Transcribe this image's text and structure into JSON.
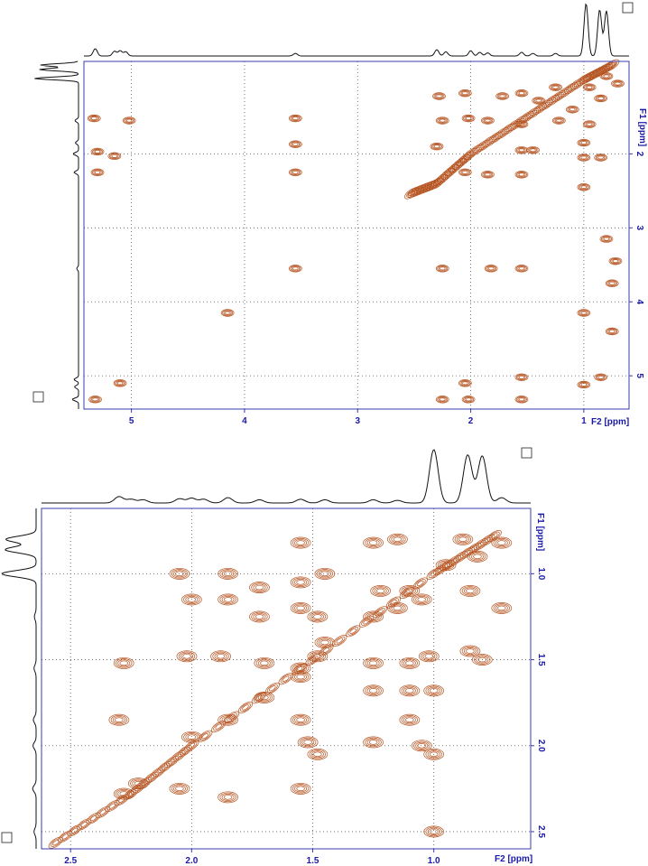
{
  "chart_data": [
    {
      "type": "heatmap",
      "panel": "top",
      "x_ticks": [
        "5",
        "4",
        "3",
        "2",
        "1"
      ],
      "x_unit_label": "F2 [ppm]",
      "y_ticks": [
        "2",
        "3",
        "4",
        "5"
      ],
      "y_unit_label": "F1 [ppm]",
      "xlim": [
        5.42,
        0.6
      ],
      "ylim": [
        0.75,
        5.45
      ],
      "grid": true,
      "diagonal": [
        [
          0.75,
          0.8
        ],
        [
          1.0,
          1.0
        ],
        [
          1.5,
          1.5
        ],
        [
          2.0,
          2.0
        ],
        [
          2.3,
          2.4
        ],
        [
          2.55,
          2.55
        ]
      ],
      "peaks": [
        {
          "x": 5.33,
          "y": 1.52
        },
        {
          "x": 5.3,
          "y": 1.97
        },
        {
          "x": 5.3,
          "y": 2.25
        },
        {
          "x": 5.02,
          "y": 1.55
        },
        {
          "x": 5.15,
          "y": 2.03
        },
        {
          "x": 5.1,
          "y": 5.1
        },
        {
          "x": 5.32,
          "y": 5.32
        },
        {
          "x": 3.55,
          "y": 1.52
        },
        {
          "x": 3.55,
          "y": 1.87
        },
        {
          "x": 3.55,
          "y": 2.25
        },
        {
          "x": 3.55,
          "y": 3.55
        },
        {
          "x": 4.15,
          "y": 4.15
        },
        {
          "x": 2.25,
          "y": 3.55
        },
        {
          "x": 1.82,
          "y": 3.55
        },
        {
          "x": 1.55,
          "y": 3.55
        },
        {
          "x": 2.05,
          "y": 5.1
        },
        {
          "x": 1.55,
          "y": 5.02
        },
        {
          "x": 2.02,
          "y": 5.32
        },
        {
          "x": 2.25,
          "y": 5.32
        },
        {
          "x": 1.55,
          "y": 5.32
        },
        {
          "x": 2.28,
          "y": 1.22
        },
        {
          "x": 2.05,
          "y": 1.18
        },
        {
          "x": 1.72,
          "y": 1.22
        },
        {
          "x": 2.25,
          "y": 1.55
        },
        {
          "x": 2.02,
          "y": 1.52
        },
        {
          "x": 1.85,
          "y": 1.55
        },
        {
          "x": 1.55,
          "y": 1.18
        },
        {
          "x": 1.4,
          "y": 1.28
        },
        {
          "x": 1.25,
          "y": 1.1
        },
        {
          "x": 1.1,
          "y": 1.4
        },
        {
          "x": 1.22,
          "y": 1.55
        },
        {
          "x": 1.55,
          "y": 1.6
        },
        {
          "x": 1.55,
          "y": 1.95
        },
        {
          "x": 1.45,
          "y": 1.95
        },
        {
          "x": 1.0,
          "y": 1.85
        },
        {
          "x": 0.95,
          "y": 1.6
        },
        {
          "x": 0.85,
          "y": 1.25
        },
        {
          "x": 0.95,
          "y": 1.1
        },
        {
          "x": 2.05,
          "y": 2.25
        },
        {
          "x": 1.85,
          "y": 2.28
        },
        {
          "x": 1.55,
          "y": 2.28
        },
        {
          "x": 2.3,
          "y": 1.9
        },
        {
          "x": 1.0,
          "y": 2.05
        },
        {
          "x": 0.85,
          "y": 2.05
        },
        {
          "x": 1.0,
          "y": 2.45
        },
        {
          "x": 0.8,
          "y": 0.95
        },
        {
          "x": 0.7,
          "y": 1.05
        },
        {
          "x": 0.8,
          "y": 3.15
        },
        {
          "x": 0.72,
          "y": 3.45
        },
        {
          "x": 0.75,
          "y": 3.75
        },
        {
          "x": 1.0,
          "y": 4.15
        },
        {
          "x": 0.75,
          "y": 4.4
        },
        {
          "x": 0.85,
          "y": 5.02
        },
        {
          "x": 1.0,
          "y": 5.12
        }
      ],
      "f2_projection_peaks": [
        {
          "x": 0.98,
          "h": 1.0
        },
        {
          "x": 0.86,
          "h": 0.88
        },
        {
          "x": 0.8,
          "h": 0.86
        },
        {
          "x": 5.32,
          "h": 0.14
        },
        {
          "x": 5.15,
          "h": 0.09
        },
        {
          "x": 5.1,
          "h": 0.1
        },
        {
          "x": 5.05,
          "h": 0.08
        },
        {
          "x": 3.55,
          "h": 0.05
        },
        {
          "x": 2.3,
          "h": 0.12
        },
        {
          "x": 2.22,
          "h": 0.08
        },
        {
          "x": 2.0,
          "h": 0.1
        },
        {
          "x": 1.92,
          "h": 0.07
        },
        {
          "x": 1.85,
          "h": 0.06
        },
        {
          "x": 1.55,
          "h": 0.07
        },
        {
          "x": 1.45,
          "h": 0.05
        },
        {
          "x": 1.25,
          "h": 0.05
        }
      ],
      "f1_projection_peaks": [
        {
          "y": 0.98,
          "h": 1.0
        },
        {
          "y": 0.86,
          "h": 0.88
        },
        {
          "y": 0.8,
          "h": 0.86
        },
        {
          "y": 1.55,
          "h": 0.08
        },
        {
          "y": 1.85,
          "h": 0.07
        },
        {
          "y": 2.0,
          "h": 0.12
        },
        {
          "y": 2.25,
          "h": 0.1
        },
        {
          "y": 3.55,
          "h": 0.04
        },
        {
          "y": 5.05,
          "h": 0.1
        },
        {
          "y": 5.15,
          "h": 0.09
        },
        {
          "y": 5.32,
          "h": 0.14
        }
      ]
    },
    {
      "type": "heatmap",
      "panel": "bottom",
      "x_ticks": [
        "2.5",
        "2.0",
        "1.5",
        "1.0"
      ],
      "x_unit_label": "F2 [ppm]",
      "y_ticks": [
        "1.0",
        "1.5",
        "2.0",
        "2.5"
      ],
      "y_unit_label": "F1 [ppm]",
      "xlim": [
        2.62,
        0.6
      ],
      "ylim": [
        0.62,
        2.6
      ],
      "grid": true,
      "diagonal": [
        [
          0.75,
          0.78
        ],
        [
          1.0,
          1.0
        ],
        [
          1.5,
          1.5
        ],
        [
          2.0,
          2.0
        ],
        [
          2.25,
          2.28
        ],
        [
          2.6,
          2.6
        ]
      ],
      "peaks": [
        {
          "x": 2.28,
          "y": 2.28
        },
        {
          "x": 2.22,
          "y": 2.22
        },
        {
          "x": 2.0,
          "y": 1.95
        },
        {
          "x": 1.85,
          "y": 1.85
        },
        {
          "x": 1.7,
          "y": 1.72
        },
        {
          "x": 1.55,
          "y": 1.55
        },
        {
          "x": 1.45,
          "y": 1.4
        },
        {
          "x": 1.25,
          "y": 1.25
        },
        {
          "x": 1.1,
          "y": 1.1
        },
        {
          "x": 0.95,
          "y": 0.95
        },
        {
          "x": 2.05,
          "y": 1.0
        },
        {
          "x": 2.0,
          "y": 1.15
        },
        {
          "x": 1.85,
          "y": 1.0
        },
        {
          "x": 1.85,
          "y": 1.15
        },
        {
          "x": 1.72,
          "y": 1.08
        },
        {
          "x": 1.72,
          "y": 1.25
        },
        {
          "x": 1.55,
          "y": 0.82
        },
        {
          "x": 1.55,
          "y": 1.05
        },
        {
          "x": 1.55,
          "y": 1.2
        },
        {
          "x": 1.45,
          "y": 1.0
        },
        {
          "x": 1.48,
          "y": 1.25
        },
        {
          "x": 1.25,
          "y": 0.82
        },
        {
          "x": 1.15,
          "y": 0.8
        },
        {
          "x": 1.22,
          "y": 1.1
        },
        {
          "x": 1.15,
          "y": 1.2
        },
        {
          "x": 1.05,
          "y": 1.15
        },
        {
          "x": 0.85,
          "y": 1.1
        },
        {
          "x": 0.72,
          "y": 1.2
        },
        {
          "x": 2.28,
          "y": 1.52
        },
        {
          "x": 2.02,
          "y": 1.48
        },
        {
          "x": 1.88,
          "y": 1.48
        },
        {
          "x": 1.7,
          "y": 1.52
        },
        {
          "x": 1.55,
          "y": 1.6
        },
        {
          "x": 1.48,
          "y": 1.48
        },
        {
          "x": 1.25,
          "y": 1.52
        },
        {
          "x": 1.1,
          "y": 1.52
        },
        {
          "x": 1.02,
          "y": 1.48
        },
        {
          "x": 0.85,
          "y": 1.45
        },
        {
          "x": 0.8,
          "y": 1.5
        },
        {
          "x": 1.25,
          "y": 1.68
        },
        {
          "x": 1.1,
          "y": 1.68
        },
        {
          "x": 1.0,
          "y": 1.68
        },
        {
          "x": 2.3,
          "y": 1.85
        },
        {
          "x": 1.55,
          "y": 1.85
        },
        {
          "x": 1.52,
          "y": 1.98
        },
        {
          "x": 1.48,
          "y": 2.05
        },
        {
          "x": 1.25,
          "y": 1.98
        },
        {
          "x": 1.1,
          "y": 1.85
        },
        {
          "x": 1.05,
          "y": 2.0
        },
        {
          "x": 1.0,
          "y": 2.05
        },
        {
          "x": 2.05,
          "y": 2.25
        },
        {
          "x": 1.85,
          "y": 2.3
        },
        {
          "x": 1.55,
          "y": 2.25
        },
        {
          "x": 1.0,
          "y": 2.5
        },
        {
          "x": 0.88,
          "y": 0.8
        },
        {
          "x": 0.82,
          "y": 0.9
        },
        {
          "x": 0.72,
          "y": 0.82
        }
      ],
      "f2_projection_peaks": [
        {
          "x": 1.0,
          "h": 1.0
        },
        {
          "x": 0.86,
          "h": 0.9
        },
        {
          "x": 0.8,
          "h": 0.88
        },
        {
          "x": 2.3,
          "h": 0.12
        },
        {
          "x": 2.25,
          "h": 0.07
        },
        {
          "x": 2.2,
          "h": 0.06
        },
        {
          "x": 2.05,
          "h": 0.08
        },
        {
          "x": 2.0,
          "h": 0.09
        },
        {
          "x": 1.95,
          "h": 0.07
        },
        {
          "x": 1.85,
          "h": 0.1
        },
        {
          "x": 1.72,
          "h": 0.06
        },
        {
          "x": 1.55,
          "h": 0.07
        },
        {
          "x": 1.45,
          "h": 0.06
        },
        {
          "x": 1.25,
          "h": 0.06
        },
        {
          "x": 1.15,
          "h": 0.05
        },
        {
          "x": 0.72,
          "h": 0.1
        }
      ],
      "f1_projection_peaks": [
        {
          "y": 1.0,
          "h": 1.0
        },
        {
          "y": 0.86,
          "h": 0.9
        },
        {
          "y": 0.8,
          "h": 0.88
        },
        {
          "y": 1.25,
          "h": 0.05
        },
        {
          "y": 1.55,
          "h": 0.06
        },
        {
          "y": 1.85,
          "h": 0.08
        },
        {
          "y": 2.0,
          "h": 0.09
        },
        {
          "y": 2.25,
          "h": 0.1
        },
        {
          "y": 2.5,
          "h": 0.06
        }
      ]
    }
  ]
}
